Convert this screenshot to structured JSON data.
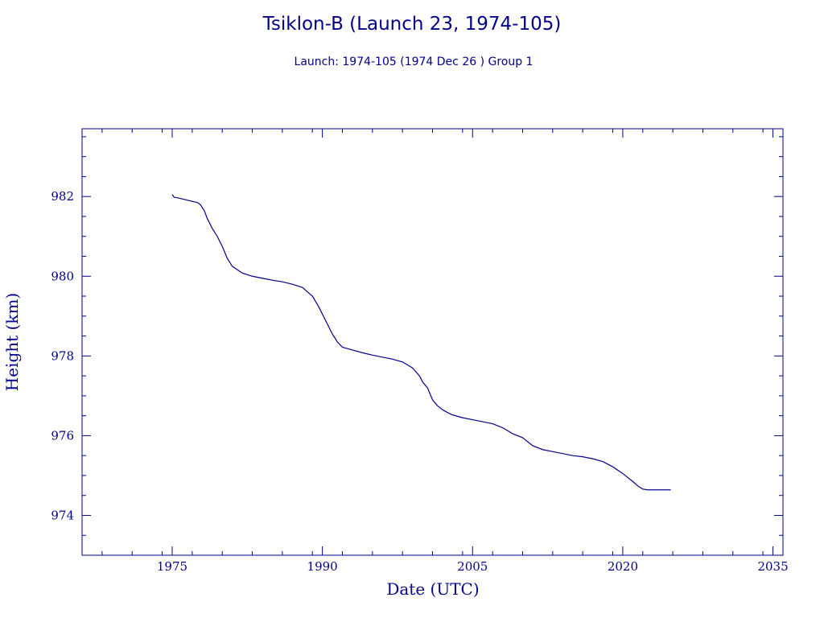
{
  "chart_data": {
    "type": "line",
    "title": "Tsiklon-B (Launch 23, 1974-105)",
    "subtitle": "Launch: 1974-105  (1974 Dec 26 )  Group 1",
    "xlabel": "Date (UTC)",
    "ylabel": "Height (km)",
    "xlim": [
      1966,
      2036
    ],
    "ylim": [
      973,
      983.7
    ],
    "x_ticks": [
      1975,
      1990,
      2005,
      2020,
      2035
    ],
    "x_tick_labels": [
      "1975",
      "1990",
      "2005",
      "2020",
      "2035"
    ],
    "y_ticks": [
      974,
      976,
      978,
      980,
      982
    ],
    "y_tick_labels": [
      "974",
      "976",
      "978",
      "980",
      "982"
    ],
    "grid": false,
    "line_color": "#00008b",
    "series": [
      {
        "x": [
          1975.0,
          1975.2,
          1975.5,
          1976.0,
          1976.5,
          1977.0,
          1977.5,
          1977.8,
          1978.2,
          1978.5,
          1979.0,
          1979.5,
          1980.0,
          1980.5,
          1981.0,
          1982.0,
          1983.0,
          1984.0,
          1985.0,
          1986.0,
          1987.0,
          1988.0,
          1989.0,
          1989.6,
          1990.0,
          1990.5,
          1991.0,
          1991.5,
          1992.0,
          1993.0,
          1994.0,
          1995.0,
          1996.0,
          1997.0,
          1998.0,
          1999.0,
          1999.7,
          2000.0,
          2000.5,
          2001.0,
          2001.5,
          2002.0,
          2002.5,
          2003.0,
          2004.0,
          2005.0,
          2006.0,
          2007.0,
          2008.0,
          2009.0,
          2010.0,
          2011.0,
          2012.0,
          2013.0,
          2014.0,
          2015.0,
          2016.0,
          2017.0,
          2018.0,
          2019.0,
          2020.0,
          2021.0,
          2021.6,
          2022.0,
          2022.5,
          2023.0,
          2023.5,
          2024.0,
          2024.5,
          2024.8
        ],
        "y": [
          982.05,
          981.98,
          981.97,
          981.94,
          981.91,
          981.88,
          981.85,
          981.8,
          981.65,
          981.45,
          981.2,
          981.0,
          980.75,
          980.45,
          980.25,
          980.08,
          980.0,
          979.95,
          979.9,
          979.86,
          979.8,
          979.72,
          979.5,
          979.25,
          979.05,
          978.8,
          978.55,
          978.35,
          978.22,
          978.15,
          978.08,
          978.02,
          977.97,
          977.92,
          977.85,
          977.7,
          977.5,
          977.35,
          977.2,
          976.9,
          976.75,
          976.65,
          976.58,
          976.52,
          976.45,
          976.4,
          976.35,
          976.3,
          976.2,
          976.05,
          975.95,
          975.75,
          975.65,
          975.6,
          975.55,
          975.5,
          975.47,
          975.42,
          975.35,
          975.22,
          975.05,
          974.85,
          974.72,
          974.66,
          974.64,
          974.64,
          974.64,
          974.64,
          974.64,
          974.64
        ]
      }
    ]
  }
}
